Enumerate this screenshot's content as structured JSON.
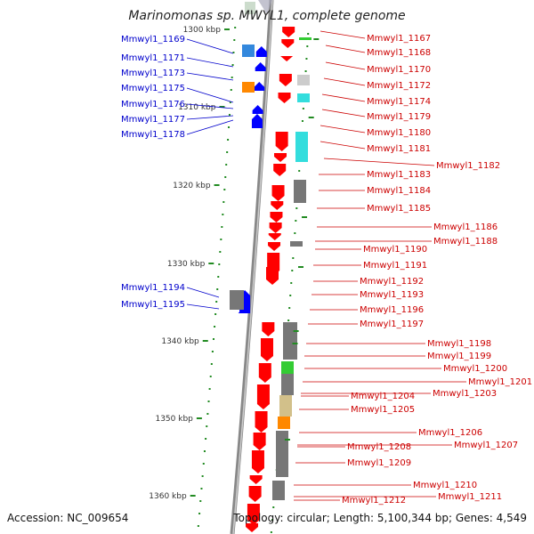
{
  "title": "Marinomonas sp. MWYL1, complete genome",
  "accession_label": "Accession: NC_009654",
  "topology_label": "Topology: circular; Length: 5,100,344 bp; Genes: 4,549",
  "colors": {
    "forward_gene": "#ff0000",
    "reverse_gene": "#0000ff",
    "forward_label": "#cc0000",
    "reverse_label": "#0000cc",
    "backbone": "#888888",
    "tick": "#228b22",
    "feature_gray": "#777777",
    "feature_green": "#33cc33",
    "feature_cyan": "#33dddd",
    "feature_orange": "#ff8800",
    "feature_tan": "#d2c08a"
  },
  "scale_ticks": [
    "1300 kbp",
    "1310 kbp",
    "1320 kbp",
    "1330 kbp",
    "1340 kbp",
    "1350 kbp",
    "1360 kbp"
  ],
  "reverse_genes": [
    "Mmwyl1_1169",
    "Mmwyl1_1171",
    "Mmwyl1_1173",
    "Mmwyl1_1175",
    "Mmwyl1_1176",
    "Mmwyl1_1177",
    "Mmwyl1_1178",
    "Mmwyl1_1194",
    "Mmwyl1_1195"
  ],
  "forward_genes": [
    "Mmwyl1_1167",
    "Mmwyl1_1168",
    "Mmwyl1_1170",
    "Mmwyl1_1172",
    "Mmwyl1_1174",
    "Mmwyl1_1179",
    "Mmwyl1_1180",
    "Mmwyl1_1181",
    "Mmwyl1_1182",
    "Mmwyl1_1183",
    "Mmwyl1_1184",
    "Mmwyl1_1185",
    "Mmwyl1_1186",
    "Mmwyl1_1188",
    "Mmwyl1_1190",
    "Mmwyl1_1191",
    "Mmwyl1_1192",
    "Mmwyl1_1193",
    "Mmwyl1_1196",
    "Mmwyl1_1197",
    "Mmwyl1_1198",
    "Mmwyl1_1199",
    "Mmwyl1_1200",
    "Mmwyl1_1201",
    "Mmwyl1_1203",
    "Mmwyl1_1204",
    "Mmwyl1_1205",
    "Mmwyl1_1206",
    "Mmwyl1_1207",
    "Mmwyl1_1208",
    "Mmwyl1_1209",
    "Mmwyl1_1210",
    "Mmwyl1_1211",
    "Mmwyl1_1212"
  ]
}
